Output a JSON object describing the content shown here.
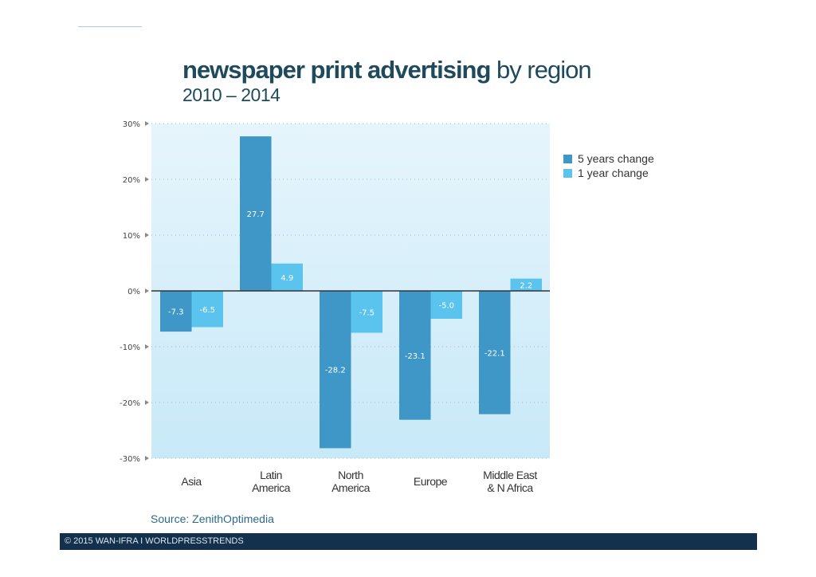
{
  "header": {
    "title_bold": "newspaper print advertising",
    "title_rest": " by region",
    "subtitle": "2010 – 2014"
  },
  "chart_data": {
    "type": "bar",
    "categories": [
      "Asia",
      "Latin America",
      "North America",
      "Europe",
      "Middle East & N Africa"
    ],
    "category_lines": [
      [
        "Asia"
      ],
      [
        "Latin",
        "America"
      ],
      [
        "North",
        "America"
      ],
      [
        "Europe"
      ],
      [
        "Middle East",
        "& N Africa"
      ]
    ],
    "series": [
      {
        "name": "5 years change",
        "color": "#3e97c6",
        "values": [
          -7.3,
          27.7,
          -28.2,
          -23.1,
          -22.1
        ],
        "labels": [
          "-7.3",
          "27.7",
          "-28.2",
          "-23.1",
          "-22.1"
        ]
      },
      {
        "name": "1 year change",
        "color": "#5ac4ee",
        "values": [
          -6.5,
          4.9,
          -7.5,
          -5.0,
          2.2
        ],
        "labels": [
          "-6.5",
          "4.9",
          "-7.5",
          "-5.0",
          "2.2"
        ]
      }
    ],
    "ylim": [
      -30,
      30
    ],
    "yticks": [
      30,
      20,
      10,
      0,
      -10,
      -20,
      -30
    ],
    "ytick_labels": [
      "30%",
      "20%",
      "10%",
      "0%",
      "-10%",
      "-20%",
      "-30%"
    ],
    "grid": true,
    "legend": "right"
  },
  "source": "Source: ZenithOptimedia",
  "footer": "© 2015 WAN-IFRA I WORLDPRESSTRENDS"
}
